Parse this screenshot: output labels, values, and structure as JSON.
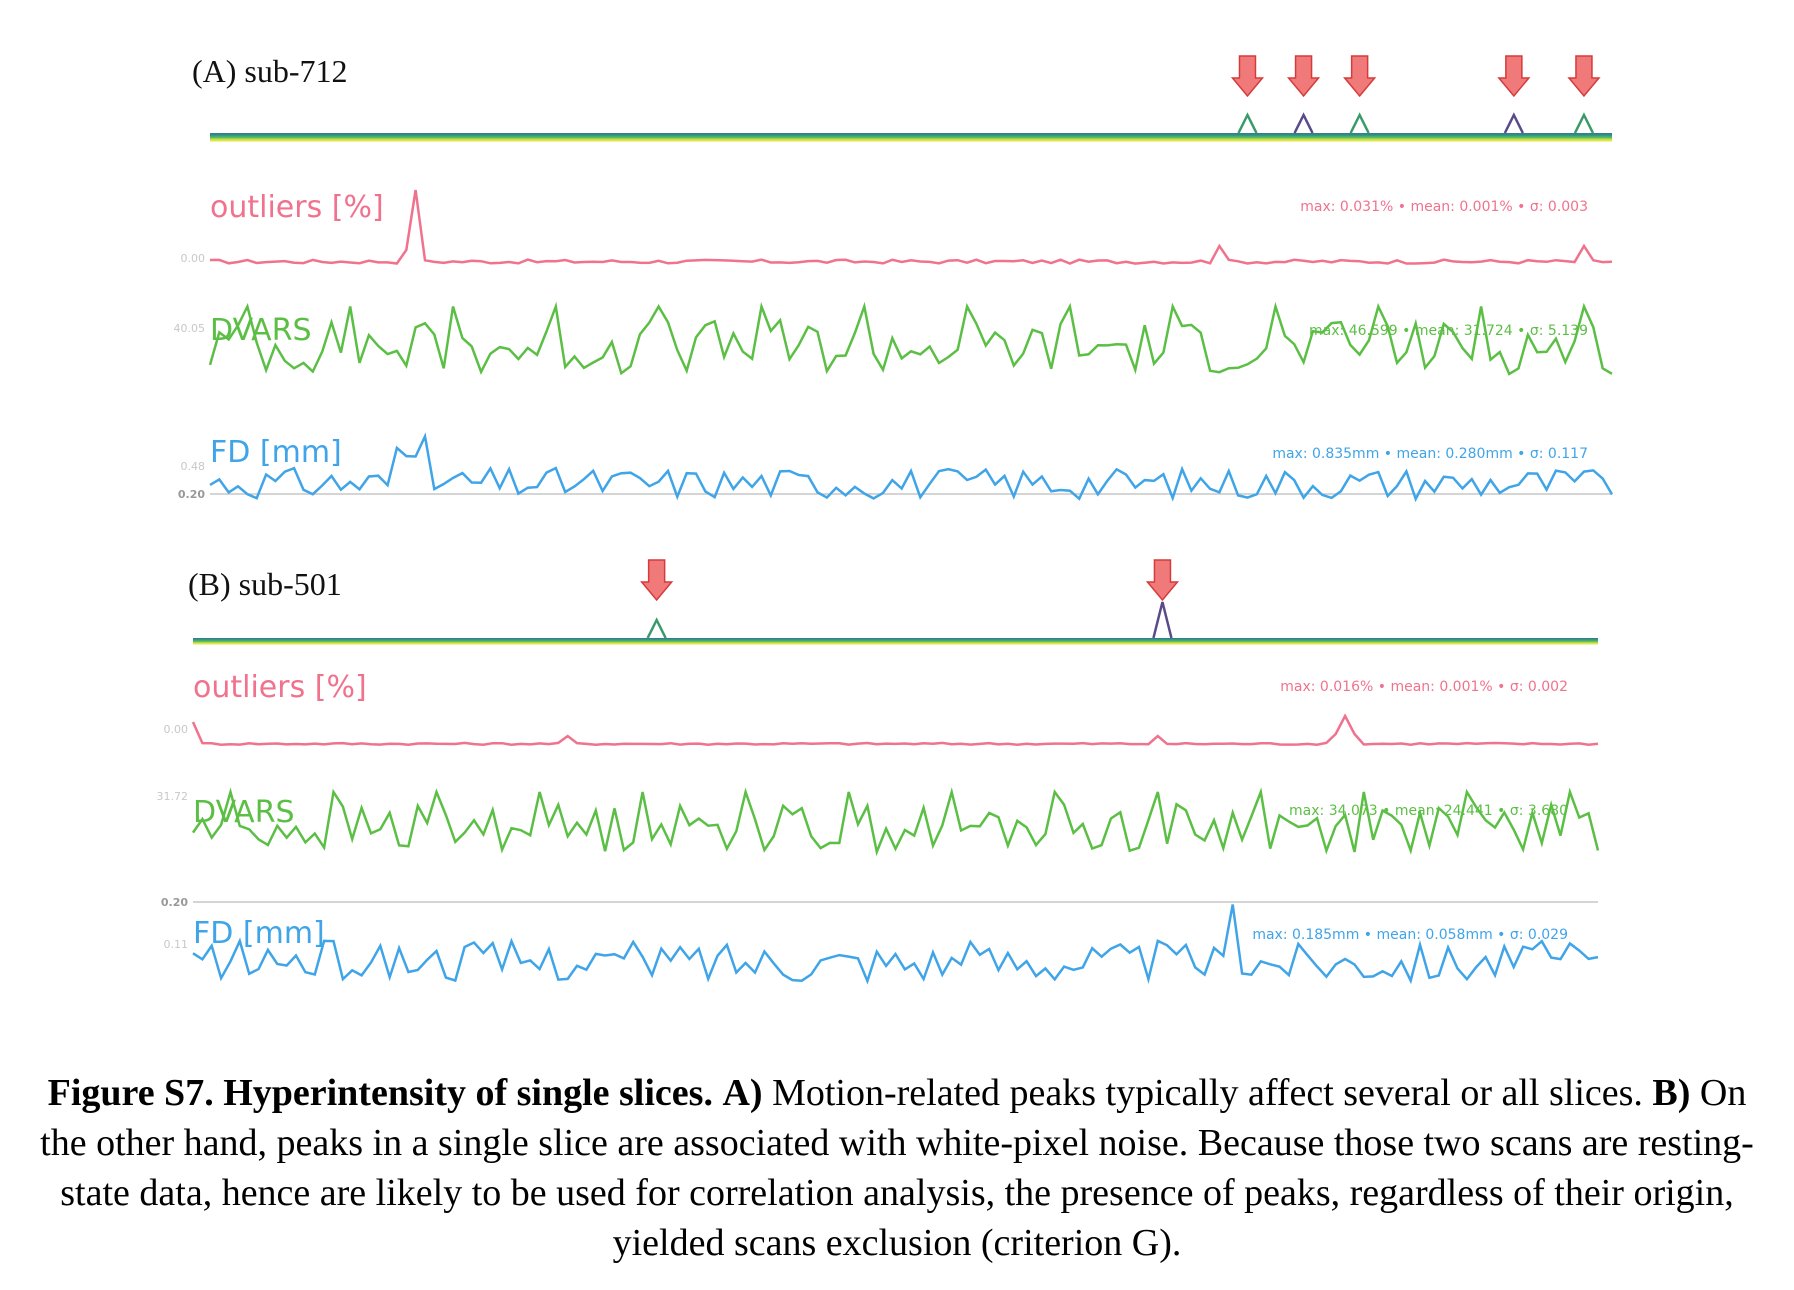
{
  "panels": [
    {
      "title": "(A)  sub-712",
      "carpet_peaks": [
        0.74,
        0.78,
        0.82,
        0.93,
        0.98
      ],
      "arrows": [
        0.74,
        0.78,
        0.82,
        0.93,
        0.98
      ],
      "traces": [
        {
          "label": "outliers [%]",
          "tick": "0.00",
          "ref_tick": "",
          "color": "#f0728d",
          "stats": "max: 0.031% • mean: 0.001% • σ: 0.003"
        },
        {
          "label": "DVARS",
          "tick": "40.05",
          "ref_tick": "",
          "color": "#5cbf45",
          "stats": "max: 46.599 • mean: 31.724 • σ: 5.139"
        },
        {
          "label": "FD [mm]",
          "tick": "0.48",
          "ref_tick": "0.20",
          "color": "#3fa4e8",
          "stats": "max: 0.835mm • mean: 0.280mm • σ: 0.117"
        }
      ]
    },
    {
      "title": "(B) sub-501",
      "carpet_peaks": [
        0.33,
        0.69
      ],
      "arrows": [
        0.33,
        0.69
      ],
      "traces": [
        {
          "label": "outliers [%]",
          "tick": "0.00",
          "ref_tick": "",
          "color": "#f0728d",
          "stats": "max: 0.016% • mean: 0.001% • σ: 0.002"
        },
        {
          "label": "DVARS",
          "tick": "31.72",
          "ref_tick": "",
          "color": "#5cbf45",
          "stats": "max: 34.073 • mean: 24.441 • σ: 3.680"
        },
        {
          "label": "FD [mm]",
          "tick": "0.11",
          "ref_tick": "0.20",
          "color": "#3fa4e8",
          "stats": "max: 0.185mm • mean: 0.058mm • σ: 0.029"
        }
      ]
    }
  ],
  "caption": {
    "lead": "Figure S7. Hyperintensity of single slices.",
    "a_label": "A)",
    "a_text": "Motion-related peaks typically affect several or all slices.",
    "b_label": "B)",
    "b_text": "On the other hand, peaks in a single slice are associated with white-pixel noise. Because those two scans are resting-state data, hence are likely to be used for correlation analysis, the presence of peaks, regardless of their origin, yielded scans exclusion (criterion G)."
  }
}
